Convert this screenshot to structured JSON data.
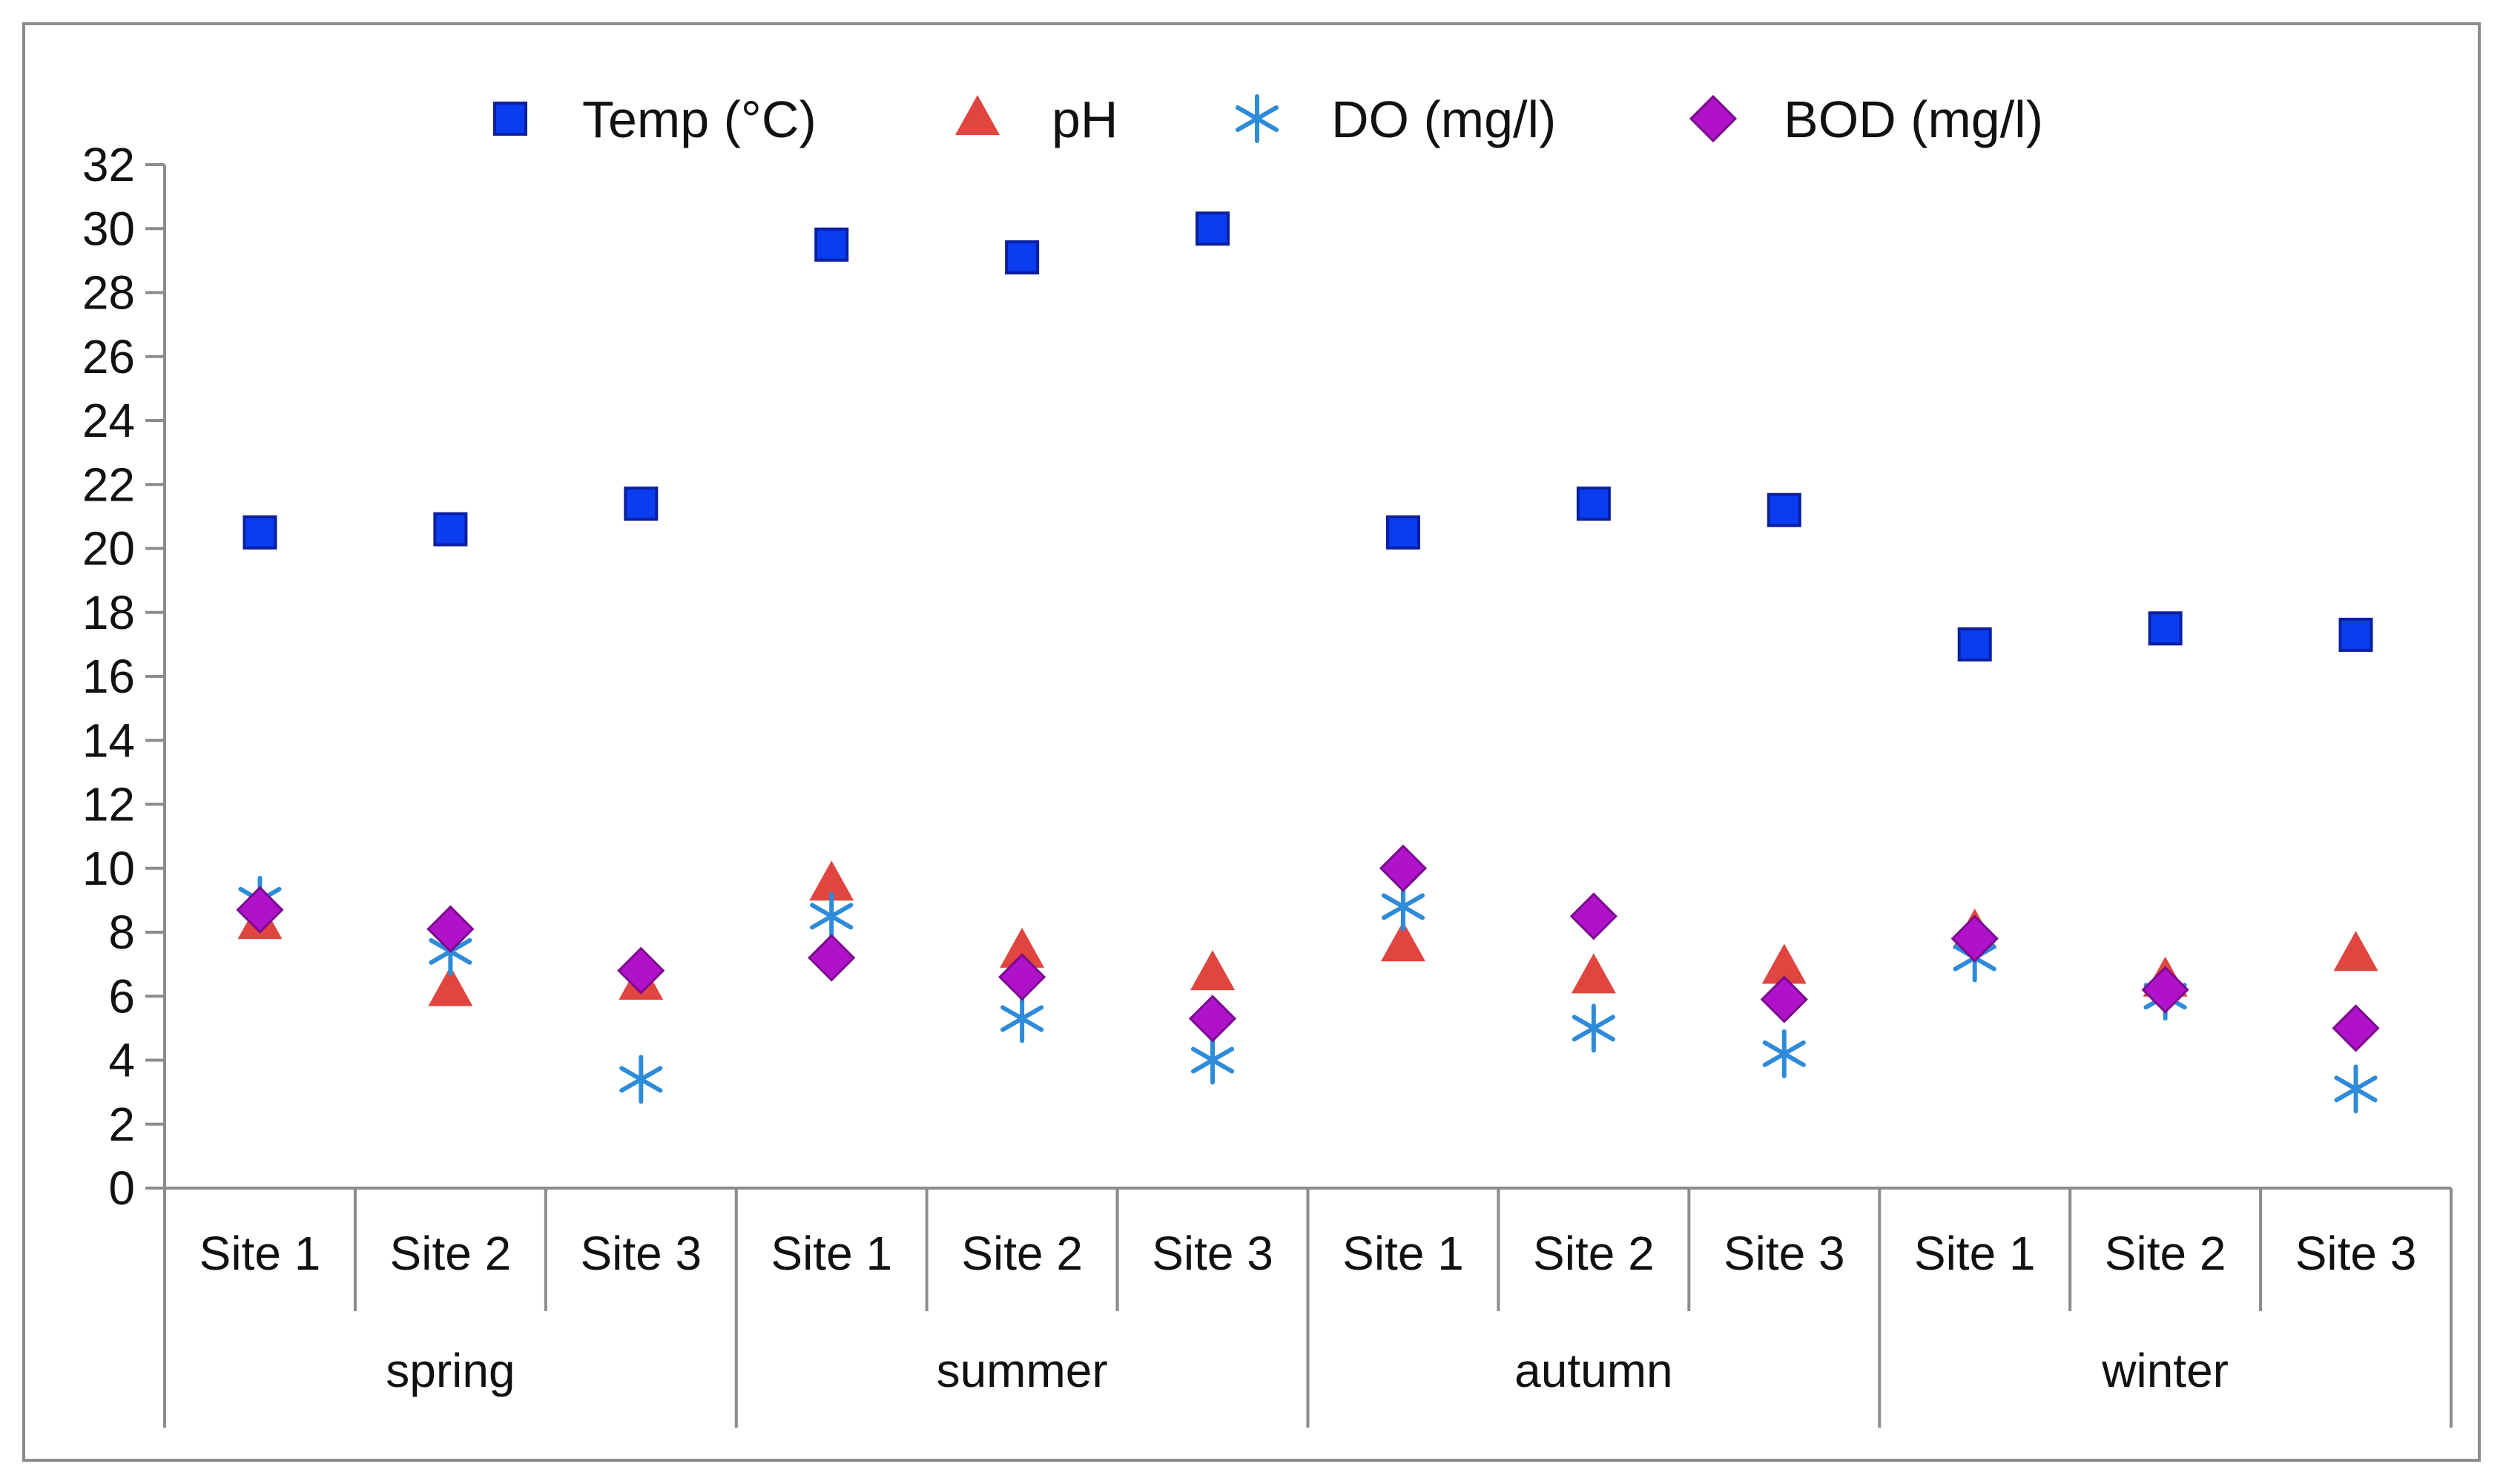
{
  "chart_data": {
    "type": "scatter",
    "title": "",
    "xlabel": "",
    "ylabel": "",
    "ylim": [
      0,
      32
    ],
    "yticks": [
      0,
      2,
      4,
      6,
      8,
      10,
      12,
      14,
      16,
      18,
      20,
      22,
      24,
      26,
      28,
      30,
      32
    ],
    "grid": false,
    "legend_position": "top",
    "groups": [
      "spring",
      "summer",
      "autumn",
      "winter"
    ],
    "categories": [
      "Site 1",
      "Site 2",
      "Site 3",
      "Site 1",
      "Site 2",
      "Site 3",
      "Site 1",
      "Site 2",
      "Site 3",
      "Site 1",
      "Site 2",
      "Site 3"
    ],
    "series": [
      {
        "name": "Temp (°C)",
        "marker": "square",
        "color": "#0a3cf0",
        "values": [
          20.5,
          20.6,
          21.4,
          29.5,
          29.1,
          30.0,
          20.5,
          21.4,
          21.2,
          17.0,
          17.5,
          17.3
        ]
      },
      {
        "name": "pH",
        "marker": "triangle",
        "color": "#e0463f",
        "values": [
          8.3,
          6.2,
          6.4,
          9.5,
          7.4,
          6.7,
          7.6,
          6.6,
          6.9,
          8.0,
          6.5,
          7.3
        ]
      },
      {
        "name": "DO (mg/l)",
        "marker": "star",
        "color": "#2e8bd9",
        "values": [
          9.0,
          7.4,
          3.4,
          8.5,
          5.3,
          4.0,
          8.8,
          5.0,
          4.2,
          7.2,
          6.0,
          3.1
        ]
      },
      {
        "name": "BOD (mg/l)",
        "marker": "diamond",
        "color": "#b012c9",
        "values": [
          8.7,
          8.1,
          6.8,
          7.2,
          6.6,
          5.3,
          10.0,
          8.5,
          5.9,
          7.8,
          6.2,
          5.0
        ]
      }
    ]
  }
}
